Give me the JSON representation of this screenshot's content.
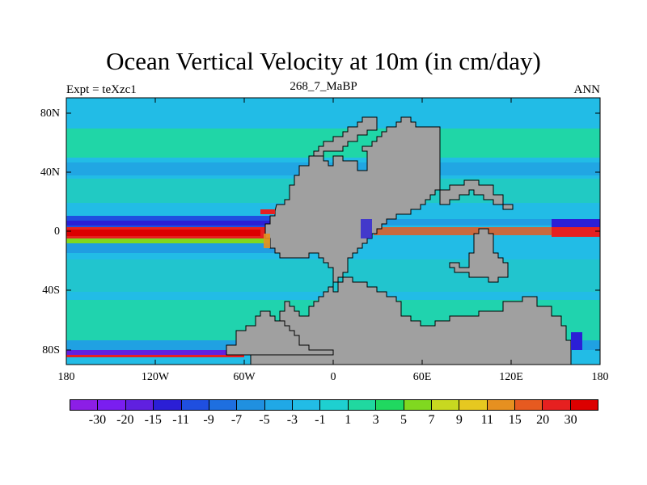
{
  "title": "Ocean Vertical Velocity at 10m (in cm/day)",
  "subtitle_left": "Expt = teXzc1",
  "subtitle_center": "268_7_MaBP",
  "subtitle_right": "ANN",
  "y_ticks": [
    "80N",
    "40N",
    "0",
    "40S",
    "80S"
  ],
  "x_ticks": [
    "180",
    "120W",
    "60W",
    "0",
    "60E",
    "120E",
    "180"
  ],
  "colorbar": {
    "labels": [
      "-30",
      "-20",
      "-15",
      "-11",
      "-9",
      "-7",
      "-5",
      "-3",
      "-1",
      "1",
      "3",
      "5",
      "7",
      "9",
      "11",
      "15",
      "20",
      "30"
    ],
    "colors": [
      "#8c1ee6",
      "#7a1ef0",
      "#6020e0",
      "#2b1fd6",
      "#1f4fe0",
      "#1e6fe0",
      "#2090e0",
      "#20a8e6",
      "#22bce6",
      "#1ed0d0",
      "#20d8a0",
      "#20d860",
      "#80d820",
      "#c8d820",
      "#e6c820",
      "#e69020",
      "#e65a20",
      "#e62020",
      "#dc0000"
    ]
  },
  "colors": {
    "ocean_base": "#22bce6",
    "land": "#a0a0a0"
  }
}
